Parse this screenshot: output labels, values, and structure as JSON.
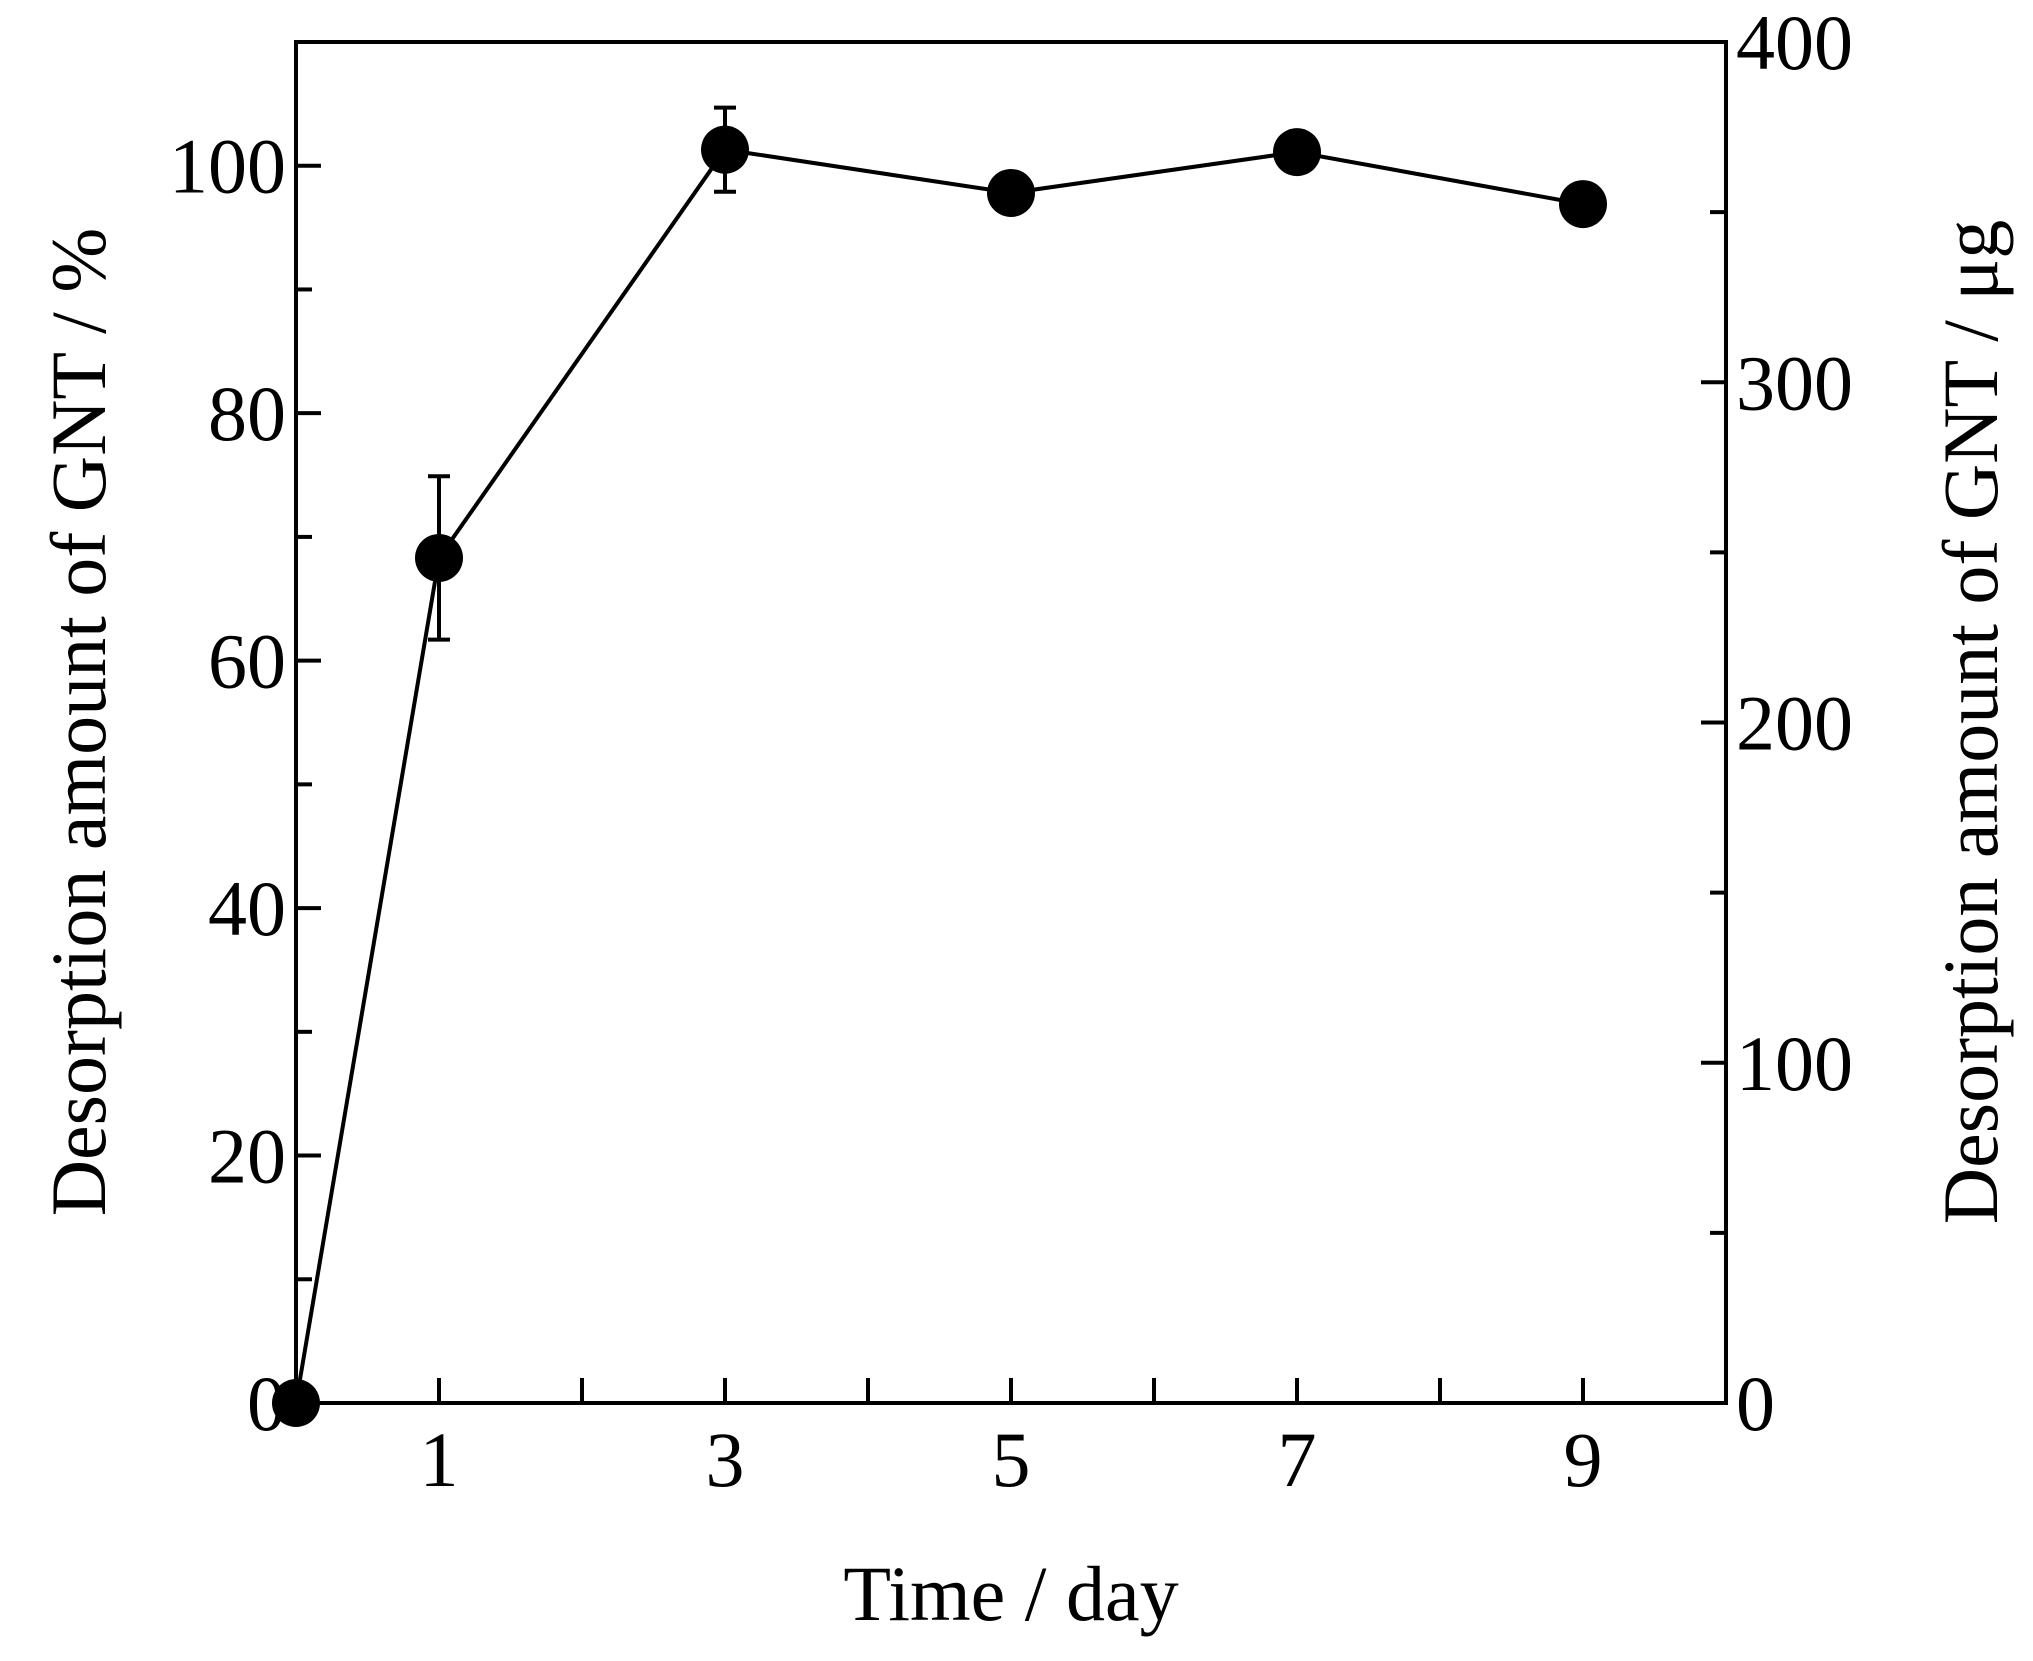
{
  "chart_data": {
    "type": "line",
    "title": "",
    "xlabel": "Time / day",
    "ylabel": "Desorption amount of GNT / %",
    "y2label": "Desorption amount of GNT / μg",
    "xlim": [
      0,
      10
    ],
    "ylim": [
      0,
      110
    ],
    "y2lim": [
      0,
      400
    ],
    "x_ticks": [
      1,
      3,
      5,
      7,
      9
    ],
    "x_minor_ticks": [
      2,
      4,
      6,
      8
    ],
    "y_ticks": [
      0,
      20,
      40,
      60,
      80,
      100
    ],
    "y_minor_ticks": [
      10,
      30,
      50,
      70,
      90
    ],
    "y2_ticks": [
      0,
      100,
      200,
      300,
      400
    ],
    "y2_minor_ticks": [
      50,
      150,
      250,
      350
    ],
    "grid": false,
    "series": [
      {
        "points": [
          {
            "x": 0,
            "y": 0
          },
          {
            "x": 1,
            "y": 68.3,
            "err": 6.6
          },
          {
            "x": 3,
            "y": 101.3,
            "err": 3.4
          },
          {
            "x": 5,
            "y": 97.8
          },
          {
            "x": 7,
            "y": 101.1
          },
          {
            "x": 9,
            "y": 96.9
          }
        ],
        "color": "#000000",
        "marker": "filled-circle"
      }
    ]
  }
}
